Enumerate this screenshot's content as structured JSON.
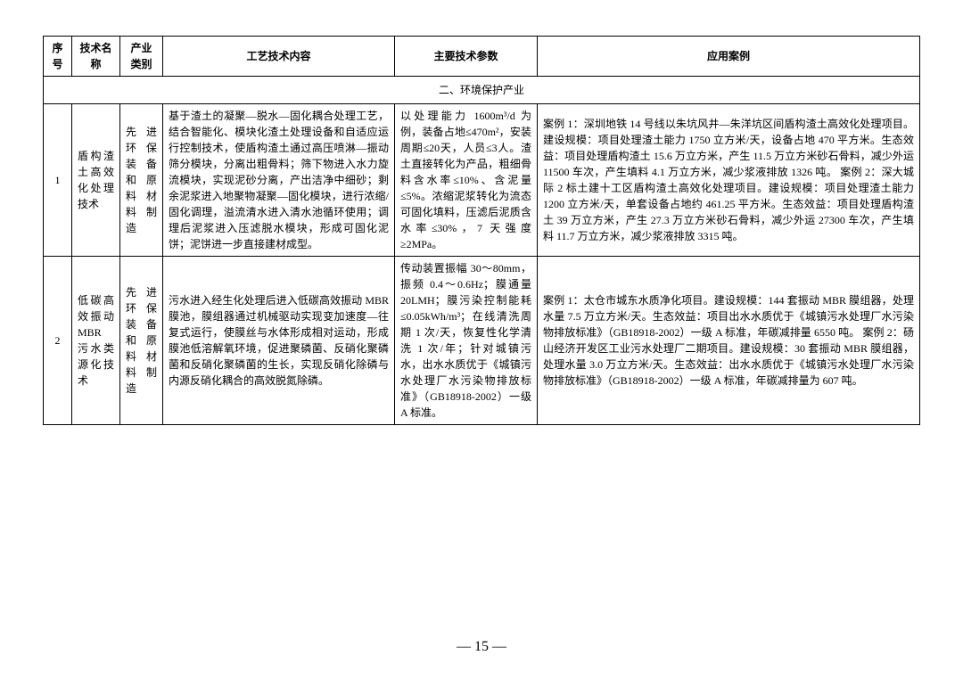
{
  "headers": {
    "seq": "序号",
    "name": "技术名称",
    "cat": "产业类别",
    "tech": "工艺技术内容",
    "param": "主要技术参数",
    "case": "应用案例"
  },
  "section_title": "二、环境保护产业",
  "rows": [
    {
      "seq": "1",
      "name": "盾构渣土高效化处理技术",
      "cat": "先进环保装备和原料材料制造",
      "tech": "基于渣土的凝聚—脱水—固化耦合处理工艺，结合智能化、模块化渣土处理设备和自适应运行控制技术，使盾构渣土通过高压喷淋—振动筛分模块，分离出粗骨料；筛下物进入水力旋流模块，实现泥砂分离，产出洁净中细砂；剩余泥浆进入地聚物凝聚—固化模块，进行浓缩/固化调理，溢流清水进入清水池循环使用；调理后泥浆进入压滤脱水模块，形成可固化泥饼；泥饼进一步直接建材成型。",
      "param": "以处理能力 1600m³/d 为例，装备占地≤470m²，安装周期≤20天，人员≤3人。渣土直接转化为产品，粗细骨料含水率≤10%、含泥量≤5%。浓缩泥浆转化为流态可固化填料，压滤后泥质含水率≤30%，7 天强度≥2MPa。",
      "case": "案例 1：深圳地铁 14 号线以朱坑风井—朱洋坑区间盾构渣土高效化处理项目。建设规模：项目处理渣土能力 1750 立方米/天，设备占地 470 平方米。生态效益：项目处理盾构渣土 15.6 万立方米，产生 11.5 万立方米砂石骨料，减少外运 11500 车次，产生填料 4.1 万立方米，减少浆液排放 1326 吨。\n案例 2：深大城际 2 标土建十工区盾构渣土高效化处理项目。建设规模：项目处理渣土能力 1200 立方米/天，单套设备占地约 461.25 平方米。生态效益：项目处理盾构渣土 39 万立方米，产生 27.3 万立方米砂石骨料，减少外运 27300 车次，产生填料 11.7 万立方米，减少浆液排放 3315 吨。"
    },
    {
      "seq": "2",
      "name": "低碳高效振动 MBR 污水类源化技术",
      "cat": "先进环保装备和原料材料制造",
      "tech": "污水进入经生化处理后进入低碳高效振动 MBR 膜池，膜组器通过机械驱动实现变加速度—往复式运行，使膜丝与水体形成相对运动，形成膜池低溶解氧环境，促进聚磷菌、反硝化聚磷菌和反硝化聚磷菌的生长，实现反硝化除磷与内源反硝化耦合的高效脱氮除磷。",
      "param": "传动装置振幅 30～80mm，振频 0.4～0.6Hz；膜通量 20LMH；膜污染控制能耗≤0.05kWh/m³；在线清洗周期 1 次/天，恢复性化学清洗 1 次/年；针对城镇污水，出水水质优于《城镇污水处理厂水污染物排放标准》（GB18918-2002）一级 A 标准。",
      "case": "案例 1：太仓市城东水质净化项目。建设规模：144 套振动 MBR 膜组器，处理水量 7.5 万立方米/天。生态效益：项目出水水质优于《城镇污水处理厂水污染物排放标准》（GB18918-2002）一级 A 标准，年碳减排量 6550 吨。\n案例 2：砀山经济开发区工业污水处理厂二期项目。建设规模：30 套振动 MBR 膜组器，处理水量 3.0 万立方米/天。生态效益：出水水质优于《城镇污水处理厂水污染物排放标准》（GB18918-2002）一级 A 标准，年碳减排量为 607 吨。"
    }
  ],
  "page_number": "— 15 —"
}
